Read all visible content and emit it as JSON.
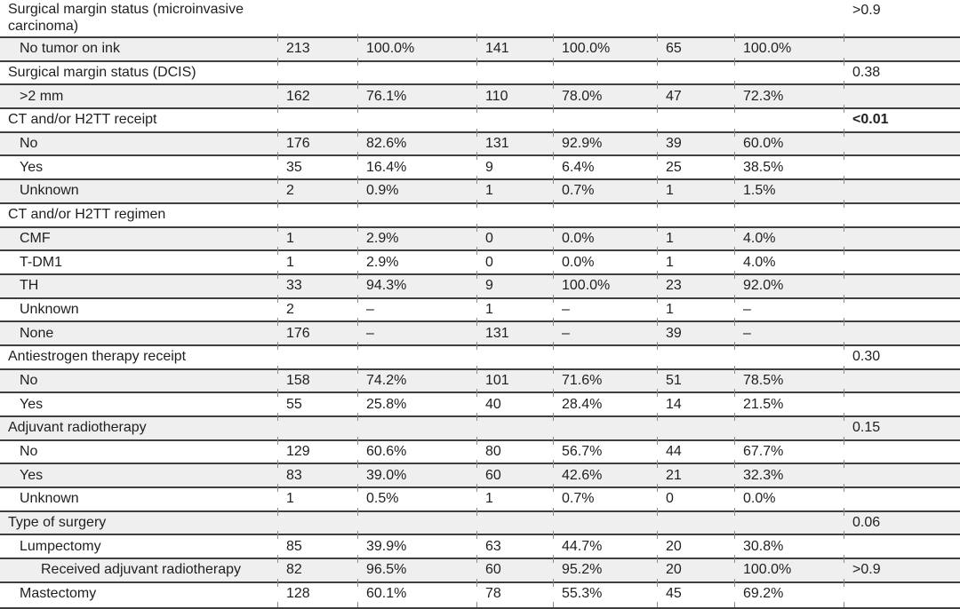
{
  "table": {
    "colors": {
      "row_shade": "#efefef",
      "separator_line": "#3f3f3f",
      "tick": "#8a8a8a",
      "text": "#1f1f1f"
    },
    "rows": [
      {
        "label": "Surgical margin status (microinvasive carcinoma)",
        "indent": 0,
        "values": [
          "",
          "",
          "",
          "",
          "",
          ""
        ],
        "p": ">0.9",
        "p_bold": false
      },
      {
        "label": "No tumor on ink",
        "indent": 1,
        "values": [
          "213",
          "100.0%",
          "141",
          "100.0%",
          "65",
          "100.0%"
        ],
        "p": "",
        "p_bold": false
      },
      {
        "label": "Surgical margin status (DCIS)",
        "indent": 0,
        "values": [
          "",
          "",
          "",
          "",
          "",
          ""
        ],
        "p": "0.38",
        "p_bold": false
      },
      {
        "label": ">2 mm",
        "indent": 1,
        "values": [
          "162",
          "76.1%",
          "110",
          "78.0%",
          "47",
          "72.3%"
        ],
        "p": "",
        "p_bold": false
      },
      {
        "label": "CT and/or H2TT receipt",
        "indent": 0,
        "values": [
          "",
          "",
          "",
          "",
          "",
          ""
        ],
        "p": "<0.01",
        "p_bold": true
      },
      {
        "label": "No",
        "indent": 1,
        "values": [
          "176",
          "82.6%",
          "131",
          "92.9%",
          "39",
          "60.0%"
        ],
        "p": "",
        "p_bold": false
      },
      {
        "label": "Yes",
        "indent": 1,
        "values": [
          "35",
          "16.4%",
          "9",
          "6.4%",
          "25",
          "38.5%"
        ],
        "p": "",
        "p_bold": false
      },
      {
        "label": "Unknown",
        "indent": 1,
        "values": [
          "2",
          "0.9%",
          "1",
          "0.7%",
          "1",
          "1.5%"
        ],
        "p": "",
        "p_bold": false
      },
      {
        "label": "CT and/or H2TT regimen",
        "indent": 0,
        "values": [
          "",
          "",
          "",
          "",
          "",
          ""
        ],
        "p": "",
        "p_bold": false
      },
      {
        "label": "CMF",
        "indent": 1,
        "values": [
          "1",
          "2.9%",
          "0",
          "0.0%",
          "1",
          "4.0%"
        ],
        "p": "",
        "p_bold": false
      },
      {
        "label": "T-DM1",
        "indent": 1,
        "values": [
          "1",
          "2.9%",
          "0",
          "0.0%",
          "1",
          "4.0%"
        ],
        "p": "",
        "p_bold": false
      },
      {
        "label": "TH",
        "indent": 1,
        "values": [
          "33",
          "94.3%",
          "9",
          "100.0%",
          "23",
          "92.0%"
        ],
        "p": "",
        "p_bold": false
      },
      {
        "label": "Unknown",
        "indent": 1,
        "values": [
          "2",
          "–",
          "1",
          "–",
          "1",
          "–"
        ],
        "p": "",
        "p_bold": false
      },
      {
        "label": "None",
        "indent": 1,
        "values": [
          "176",
          "–",
          "131",
          "–",
          "39",
          "–"
        ],
        "p": "",
        "p_bold": false
      },
      {
        "label": "Antiestrogen therapy receipt",
        "indent": 0,
        "values": [
          "",
          "",
          "",
          "",
          "",
          ""
        ],
        "p": "0.30",
        "p_bold": false
      },
      {
        "label": "No",
        "indent": 1,
        "values": [
          "158",
          "74.2%",
          "101",
          "71.6%",
          "51",
          "78.5%"
        ],
        "p": "",
        "p_bold": false
      },
      {
        "label": "Yes",
        "indent": 1,
        "values": [
          "55",
          "25.8%",
          "40",
          "28.4%",
          "14",
          "21.5%"
        ],
        "p": "",
        "p_bold": false
      },
      {
        "label": "Adjuvant radiotherapy",
        "indent": 0,
        "values": [
          "",
          "",
          "",
          "",
          "",
          ""
        ],
        "p": "0.15",
        "p_bold": false
      },
      {
        "label": "No",
        "indent": 1,
        "values": [
          "129",
          "60.6%",
          "80",
          "56.7%",
          "44",
          "67.7%"
        ],
        "p": "",
        "p_bold": false
      },
      {
        "label": "Yes",
        "indent": 1,
        "values": [
          "83",
          "39.0%",
          "60",
          "42.6%",
          "21",
          "32.3%"
        ],
        "p": "",
        "p_bold": false
      },
      {
        "label": "Unknown",
        "indent": 1,
        "values": [
          "1",
          "0.5%",
          "1",
          "0.7%",
          "0",
          "0.0%"
        ],
        "p": "",
        "p_bold": false
      },
      {
        "label": "Type of surgery",
        "indent": 0,
        "values": [
          "",
          "",
          "",
          "",
          "",
          ""
        ],
        "p": "0.06",
        "p_bold": false
      },
      {
        "label": "Lumpectomy",
        "indent": 1,
        "values": [
          "85",
          "39.9%",
          "63",
          "44.7%",
          "20",
          "30.8%"
        ],
        "p": "",
        "p_bold": false
      },
      {
        "label": "Received adjuvant radiotherapy",
        "indent": 2,
        "values": [
          "82",
          "96.5%",
          "60",
          "95.2%",
          "20",
          "100.0%"
        ],
        "p": ">0.9",
        "p_bold": false
      },
      {
        "label": "Mastectomy",
        "indent": 1,
        "values": [
          "128",
          "60.1%",
          "78",
          "55.3%",
          "45",
          "69.2%"
        ],
        "p": "",
        "p_bold": false
      }
    ]
  }
}
